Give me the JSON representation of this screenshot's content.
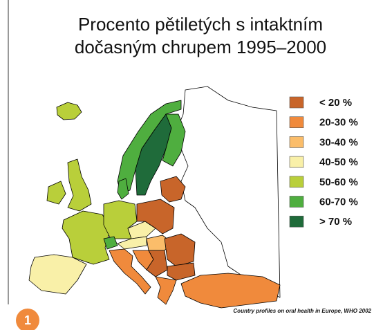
{
  "title_lines": [
    "Procento pětiletých s intaktním",
    "dočasným chrupem 1995–2000"
  ],
  "legend": [
    {
      "label": "< 20 %",
      "color": "#c8652a"
    },
    {
      "label": "20-30 %",
      "color": "#f08a3c"
    },
    {
      "label": "30-40 %",
      "color": "#fbbd6a"
    },
    {
      "label": "40-50 %",
      "color": "#f9f0a8"
    },
    {
      "label": "50-60 %",
      "color": "#b9cf3a"
    },
    {
      "label": "60-70 %",
      "color": "#4fae3f"
    },
    {
      "label": "> 70 %",
      "color": "#1f6b3a"
    }
  ],
  "source": "Country profiles on oral health in Europe, WHO 2002",
  "badge": "1"
}
